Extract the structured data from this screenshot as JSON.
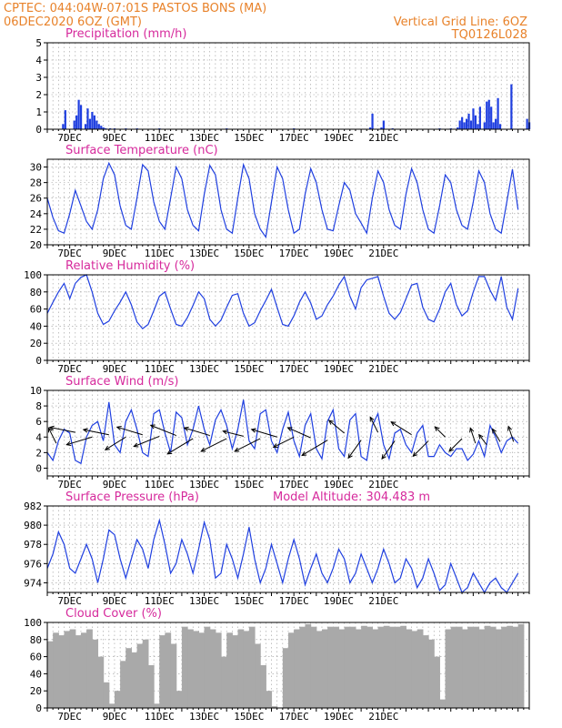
{
  "header": {
    "line1": "CPTEC:   044:04W-07:01S   PASTOS BONS (MA)",
    "line2_left": "06DEC2020 6OZ (GMT)",
    "line2_right": "Vertical Grid Line: 6OZ",
    "line3_right": "TQ0126L028"
  },
  "colors": {
    "header": "#e8822a",
    "title": "#d62a9c",
    "line": "#1f3fe0",
    "bar": "#1f3fe0",
    "cloud": "#a9a9a9",
    "arrow": "#000000"
  },
  "chart_data": [
    {
      "type": "bar",
      "title": "Precipitation (mm/h)",
      "x_labels": [
        "7DEC",
        "9DEC",
        "11DEC",
        "13DEC",
        "15DEC",
        "17DEC",
        "19DEC",
        "21DEC"
      ],
      "ylim": [
        0,
        5
      ],
      "yticks": [
        0,
        1,
        2,
        3,
        4,
        5
      ],
      "x": [
        0.7,
        0.8,
        1.2,
        1.3,
        1.4,
        1.5,
        1.7,
        1.8,
        1.9,
        2.0,
        2.1,
        2.2,
        2.3,
        2.4,
        2.5,
        2.6,
        2.8,
        3.0,
        3.5,
        4.0,
        5.0,
        8.0,
        11.0,
        14.4,
        14.5,
        14.9,
        15.0,
        15.4,
        17.5,
        18.0,
        18.3,
        18.4,
        18.5,
        18.6,
        18.7,
        18.8,
        18.9,
        19.0,
        19.1,
        19.2,
        19.3,
        19.5,
        19.6,
        19.7,
        19.8,
        19.9,
        20.0,
        20.1,
        20.2,
        20.7,
        21.4,
        21.5
      ],
      "values": [
        0.3,
        1.1,
        0.5,
        0.8,
        1.7,
        1.4,
        0.3,
        1.2,
        0.6,
        1.0,
        0.8,
        0.5,
        0.3,
        0.2,
        0.1,
        0.05,
        0.05,
        0.05,
        0.05,
        0.05,
        0.05,
        0.05,
        0.05,
        0.1,
        0.9,
        0.1,
        0.5,
        0.05,
        0.05,
        0.05,
        0.1,
        0.5,
        0.7,
        0.4,
        0.6,
        0.9,
        0.5,
        1.2,
        0.8,
        0.3,
        1.3,
        0.4,
        1.6,
        1.7,
        1.3,
        0.4,
        0.6,
        1.8,
        0.3,
        2.6,
        0.6,
        0.4
      ]
    },
    {
      "type": "line",
      "title": "Surface Temperature (nC)",
      "x_labels": [
        "7DEC",
        "9DEC",
        "11DEC",
        "13DEC",
        "15DEC",
        "17DEC",
        "19DEC",
        "21DEC"
      ],
      "ylim": [
        20,
        31
      ],
      "yticks": [
        20,
        22,
        24,
        26,
        28,
        30
      ],
      "x": [
        0.0,
        0.25,
        0.5,
        0.75,
        1.0,
        1.25,
        1.5,
        1.75,
        2.0,
        2.25,
        2.5,
        2.75,
        3.0,
        3.25,
        3.5,
        3.75,
        4.0,
        4.25,
        4.5,
        4.75,
        5.0,
        5.25,
        5.5,
        5.75,
        6.0,
        6.25,
        6.5,
        6.75,
        7.0,
        7.25,
        7.5,
        7.75,
        8.0,
        8.25,
        8.5,
        8.75,
        9.0,
        9.25,
        9.5,
        9.75,
        10.0,
        10.25,
        10.5,
        10.75,
        11.0,
        11.25,
        11.5,
        11.75,
        12.0,
        12.25,
        12.5,
        12.75,
        13.0,
        13.25,
        13.5,
        13.75,
        14.0,
        14.25,
        14.5,
        14.75,
        15.0,
        15.25,
        15.5,
        15.75,
        16.0,
        16.25,
        16.5,
        16.75,
        17.0,
        17.25,
        17.5,
        17.75,
        18.0,
        18.25,
        18.5,
        18.75,
        19.0,
        19.25,
        19.5,
        19.75,
        20.0,
        20.25,
        20.5,
        20.75,
        21.0
      ],
      "values": [
        26.0,
        23.5,
        21.8,
        21.5,
        24.0,
        27.0,
        25.0,
        23.0,
        22.0,
        24.5,
        28.5,
        30.5,
        29.0,
        25.0,
        22.5,
        22.0,
        26.0,
        30.3,
        29.5,
        25.5,
        23.0,
        22.0,
        26.0,
        30.0,
        28.5,
        24.5,
        22.5,
        21.8,
        26.5,
        30.2,
        29.0,
        24.5,
        22.0,
        21.5,
        26.0,
        30.3,
        28.5,
        24.0,
        22.0,
        21.0,
        25.5,
        30.0,
        28.5,
        24.5,
        21.5,
        22.0,
        26.5,
        29.8,
        28.0,
        24.5,
        22.0,
        21.8,
        25.0,
        28.0,
        27.0,
        24.0,
        22.8,
        21.5,
        26.0,
        29.5,
        28.0,
        24.5,
        22.5,
        22.0,
        26.5,
        29.8,
        28.0,
        24.5,
        22.0,
        21.5,
        25.0,
        29.0,
        28.0,
        24.5,
        22.5,
        22.0,
        25.5,
        29.5,
        28.0,
        24.0,
        22.0,
        21.5,
        25.5,
        29.7,
        24.5
      ]
    },
    {
      "type": "line",
      "title": "Relative Humidity (%)",
      "x_labels": [
        "7DEC",
        "9DEC",
        "11DEC",
        "13DEC",
        "15DEC",
        "17DEC",
        "19DEC",
        "21DEC"
      ],
      "ylim": [
        0,
        100
      ],
      "yticks": [
        0,
        20,
        40,
        60,
        80,
        100
      ],
      "x": [
        0.0,
        0.25,
        0.5,
        0.75,
        1.0,
        1.25,
        1.5,
        1.75,
        2.0,
        2.25,
        2.5,
        2.75,
        3.0,
        3.25,
        3.5,
        3.75,
        4.0,
        4.25,
        4.5,
        4.75,
        5.0,
        5.25,
        5.5,
        5.75,
        6.0,
        6.25,
        6.5,
        6.75,
        7.0,
        7.25,
        7.5,
        7.75,
        8.0,
        8.25,
        8.5,
        8.75,
        9.0,
        9.25,
        9.5,
        9.75,
        10.0,
        10.25,
        10.5,
        10.75,
        11.0,
        11.25,
        11.5,
        11.75,
        12.0,
        12.25,
        12.5,
        12.75,
        13.0,
        13.25,
        13.5,
        13.75,
        14.0,
        14.25,
        14.5,
        14.75,
        15.0,
        15.25,
        15.5,
        15.75,
        16.0,
        16.25,
        16.5,
        16.75,
        17.0,
        17.25,
        17.5,
        17.75,
        18.0,
        18.25,
        18.5,
        18.75,
        19.0,
        19.25,
        19.5,
        19.75,
        20.0,
        20.25,
        20.5,
        20.75,
        21.0
      ],
      "values": [
        55.0,
        68.0,
        80.0,
        90.0,
        72.0,
        90.0,
        97.0,
        100.0,
        80.0,
        55.0,
        42.0,
        46.0,
        58.0,
        68.0,
        80.0,
        65.0,
        45.0,
        37.0,
        42.0,
        58.0,
        75.0,
        80.0,
        60.0,
        42.0,
        40.0,
        50.0,
        64.0,
        80.0,
        72.0,
        48.0,
        40.0,
        47.0,
        62.0,
        76.0,
        78.0,
        55.0,
        40.0,
        44.0,
        58.0,
        70.0,
        83.0,
        62.0,
        42.0,
        40.0,
        52.0,
        68.0,
        80.0,
        67.0,
        48.0,
        52.0,
        65.0,
        75.0,
        88.0,
        98.0,
        75.0,
        60.0,
        85.0,
        94.0,
        96.0,
        98.0,
        75.0,
        55.0,
        48.0,
        56.0,
        72.0,
        88.0,
        90.0,
        62.0,
        48.0,
        45.0,
        60.0,
        80.0,
        90.0,
        65.0,
        52.0,
        58.0,
        80.0,
        98.0,
        98.0,
        82.0,
        70.0,
        98.0,
        62.0,
        48.0,
        84.0
      ]
    },
    {
      "type": "line",
      "title": "Surface Wind (m/s)",
      "x_labels": [
        "7DEC",
        "9DEC",
        "11DEC",
        "13DEC",
        "15DEC",
        "17DEC",
        "19DEC",
        "21DEC"
      ],
      "ylim": [
        -1,
        10
      ],
      "yticks": [
        0,
        2,
        4,
        6,
        8,
        10
      ],
      "x": [
        0.0,
        0.25,
        0.5,
        0.75,
        1.0,
        1.25,
        1.5,
        1.75,
        2.0,
        2.25,
        2.5,
        2.75,
        3.0,
        3.25,
        3.5,
        3.75,
        4.0,
        4.25,
        4.5,
        4.75,
        5.0,
        5.25,
        5.5,
        5.75,
        6.0,
        6.25,
        6.5,
        6.75,
        7.0,
        7.25,
        7.5,
        7.75,
        8.0,
        8.25,
        8.5,
        8.75,
        9.0,
        9.25,
        9.5,
        9.75,
        10.0,
        10.25,
        10.5,
        10.75,
        11.0,
        11.25,
        11.5,
        11.75,
        12.0,
        12.25,
        12.5,
        12.75,
        13.0,
        13.25,
        13.5,
        13.75,
        14.0,
        14.25,
        14.5,
        14.75,
        15.0,
        15.25,
        15.5,
        15.75,
        16.0,
        16.25,
        16.5,
        16.75,
        17.0,
        17.25,
        17.5,
        17.75,
        18.0,
        18.25,
        18.5,
        18.75,
        19.0,
        19.25,
        19.5,
        19.75,
        20.0,
        20.25,
        20.5,
        20.75,
        21.0
      ],
      "values": [
        2.0,
        1.0,
        3.5,
        5.0,
        4.5,
        1.0,
        0.6,
        4.0,
        5.5,
        6.0,
        3.5,
        8.5,
        3.0,
        2.0,
        6.0,
        7.5,
        5.0,
        2.0,
        1.5,
        7.0,
        7.5,
        4.5,
        2.0,
        7.2,
        6.5,
        3.0,
        5.0,
        8.0,
        5.0,
        3.0,
        6.2,
        7.5,
        5.5,
        2.5,
        5.0,
        8.8,
        3.5,
        2.5,
        7.0,
        7.5,
        3.5,
        2.0,
        5.0,
        7.2,
        3.5,
        1.5,
        5.5,
        7.0,
        2.5,
        1.2,
        6.0,
        7.5,
        2.5,
        1.5,
        6.2,
        7.0,
        1.5,
        1.0,
        5.5,
        7.0,
        3.0,
        1.2,
        4.5,
        5.0,
        3.0,
        2.0,
        4.5,
        5.5,
        1.5,
        1.5,
        3.0,
        2.0,
        1.5,
        2.5,
        2.5,
        1.0,
        1.8,
        3.5,
        1.5,
        5.5,
        4.0,
        2.0,
        3.5,
        4.0,
        3.2
      ],
      "wind_arrows": {
        "x": [
          0.4,
          1.25,
          2.0,
          2.75,
          3.5,
          4.25,
          5.0,
          5.75,
          6.5,
          7.25,
          8.0,
          8.75,
          9.5,
          10.25,
          11.0,
          11.75,
          12.5,
          13.25,
          14.0,
          14.75,
          15.5,
          16.25,
          17.0,
          17.75,
          18.5,
          19.1,
          19.6,
          20.2,
          20.8
        ],
        "u": [
          -0.3,
          -1.0,
          -1.0,
          -1.0,
          -0.8,
          -1.0,
          -1.0,
          -1.0,
          -1.0,
          -1.0,
          -1.0,
          -0.8,
          -1.0,
          -1.0,
          -0.8,
          -0.9,
          -1.0,
          -0.6,
          -0.5,
          -0.3,
          -0.5,
          -0.8,
          -0.6,
          -0.4,
          -0.5,
          -0.2,
          -0.3,
          -0.3,
          -0.2
        ],
        "v": [
          0.6,
          0.2,
          -0.3,
          0.2,
          -0.5,
          0.3,
          -0.4,
          0.4,
          -0.6,
          0.3,
          -0.5,
          0.2,
          -0.5,
          0.3,
          -0.4,
          0.4,
          -0.6,
          0.5,
          -0.7,
          0.6,
          -0.7,
          0.5,
          -0.6,
          0.4,
          -0.5,
          0.6,
          0.4,
          0.5,
          0.6
        ],
        "speed": [
          3.2,
          4.6,
          4.0,
          4.3,
          4.0,
          4.3,
          4.1,
          4.2,
          3.8,
          4.2,
          3.8,
          4.1,
          3.8,
          4.0,
          4.0,
          3.9,
          3.6,
          4.5,
          3.6,
          4.6,
          3.5,
          4.3,
          3.5,
          4.0,
          3.8,
          3.2,
          3.0,
          3.4,
          3.4
        ]
      }
    },
    {
      "type": "line",
      "title": "Surface Pressure (hPa)",
      "annotation": "Model Altitude: 304.483 m",
      "x_labels": [
        "7DEC",
        "9DEC",
        "11DEC",
        "13DEC",
        "15DEC",
        "17DEC",
        "19DEC",
        "21DEC"
      ],
      "ylim": [
        973,
        982
      ],
      "yticks": [
        974,
        976,
        978,
        980,
        982
      ],
      "x": [
        0.0,
        0.25,
        0.5,
        0.75,
        1.0,
        1.25,
        1.5,
        1.75,
        2.0,
        2.25,
        2.5,
        2.75,
        3.0,
        3.25,
        3.5,
        3.75,
        4.0,
        4.25,
        4.5,
        4.75,
        5.0,
        5.25,
        5.5,
        5.75,
        6.0,
        6.25,
        6.5,
        6.75,
        7.0,
        7.25,
        7.5,
        7.75,
        8.0,
        8.25,
        8.5,
        8.75,
        9.0,
        9.25,
        9.5,
        9.75,
        10.0,
        10.25,
        10.5,
        10.75,
        11.0,
        11.25,
        11.5,
        11.75,
        12.0,
        12.25,
        12.5,
        12.75,
        13.0,
        13.25,
        13.5,
        13.75,
        14.0,
        14.25,
        14.5,
        14.75,
        15.0,
        15.25,
        15.5,
        15.75,
        16.0,
        16.25,
        16.5,
        16.75,
        17.0,
        17.25,
        17.5,
        17.75,
        18.0,
        18.25,
        18.5,
        18.75,
        19.0,
        19.25,
        19.5,
        19.75,
        20.0,
        20.25,
        20.5,
        20.75,
        21.0
      ],
      "values": [
        975.5,
        977.0,
        979.3,
        978.0,
        975.5,
        975.0,
        976.5,
        978.0,
        976.5,
        974.0,
        976.5,
        979.5,
        979.0,
        976.5,
        974.5,
        976.5,
        978.5,
        977.5,
        975.5,
        978.5,
        980.5,
        978.0,
        975.0,
        976.0,
        978.5,
        977.0,
        975.0,
        977.5,
        980.3,
        978.5,
        974.5,
        975.0,
        978.0,
        976.5,
        974.5,
        977.0,
        979.8,
        976.5,
        974.0,
        975.5,
        978.0,
        976.0,
        974.0,
        976.5,
        978.5,
        976.5,
        973.8,
        975.5,
        977.0,
        975.0,
        974.0,
        975.5,
        977.5,
        976.5,
        974.0,
        975.0,
        977.0,
        975.5,
        974.0,
        975.5,
        977.5,
        976.0,
        974.0,
        974.5,
        976.5,
        975.5,
        973.5,
        974.5,
        976.5,
        975.0,
        973.2,
        973.8,
        976.0,
        974.5,
        973.0,
        973.5,
        975.0,
        974.0,
        973.0,
        974.0,
        974.5,
        973.5,
        973.0,
        974.0,
        975.0
      ]
    },
    {
      "type": "area",
      "title": "Cloud Cover (%)",
      "x_labels": [
        "7DEC",
        "9DEC",
        "11DEC",
        "13DEC",
        "15DEC",
        "17DEC",
        "19DEC",
        "21DEC"
      ],
      "ylim": [
        0,
        100
      ],
      "yticks": [
        0,
        20,
        40,
        60,
        80,
        100
      ],
      "x": [
        0.0,
        0.25,
        0.5,
        0.75,
        1.0,
        1.25,
        1.5,
        1.75,
        2.0,
        2.25,
        2.5,
        2.75,
        3.0,
        3.25,
        3.5,
        3.75,
        4.0,
        4.25,
        4.5,
        4.75,
        5.0,
        5.25,
        5.5,
        5.75,
        6.0,
        6.25,
        6.5,
        6.75,
        7.0,
        7.25,
        7.5,
        7.75,
        8.0,
        8.25,
        8.5,
        8.75,
        9.0,
        9.25,
        9.5,
        9.75,
        10.0,
        10.25,
        10.5,
        10.75,
        11.0,
        11.25,
        11.5,
        11.75,
        12.0,
        12.25,
        12.5,
        12.75,
        13.0,
        13.25,
        13.5,
        13.75,
        14.0,
        14.25,
        14.5,
        14.75,
        15.0,
        15.25,
        15.5,
        15.75,
        16.0,
        16.25,
        16.5,
        16.75,
        17.0,
        17.25,
        17.5,
        17.75,
        18.0,
        18.25,
        18.5,
        18.75,
        19.0,
        19.25,
        19.5,
        19.75,
        20.0,
        20.25,
        20.5,
        20.75,
        21.0
      ],
      "values": [
        78.0,
        88.0,
        85.0,
        90.0,
        92.0,
        85.0,
        88.0,
        92.0,
        80.0,
        60.0,
        30.0,
        5.0,
        20.0,
        55.0,
        70.0,
        65.0,
        75.0,
        80.0,
        50.0,
        5.0,
        85.0,
        88.0,
        75.0,
        20.0,
        95.0,
        92.0,
        90.0,
        88.0,
        95.0,
        92.0,
        88.0,
        60.0,
        88.0,
        85.0,
        92.0,
        90.0,
        95.0,
        75.0,
        50.0,
        20.0,
        2.0,
        0.0,
        70.0,
        88.0,
        92.0,
        95.0,
        98.0,
        95.0,
        90.0,
        92.0,
        95.0,
        95.0,
        92.0,
        95.0,
        95.0,
        92.0,
        96.0,
        95.0,
        92.0,
        95.0,
        96.0,
        95.0,
        95.0,
        96.0,
        92.0,
        90.0,
        92.0,
        85.0,
        80.0,
        60.0,
        10.0,
        92.0,
        95.0,
        95.0,
        92.0,
        95.0,
        95.0,
        92.0,
        96.0,
        95.0,
        92.0,
        95.0,
        96.0,
        95.0,
        98.0
      ]
    }
  ]
}
